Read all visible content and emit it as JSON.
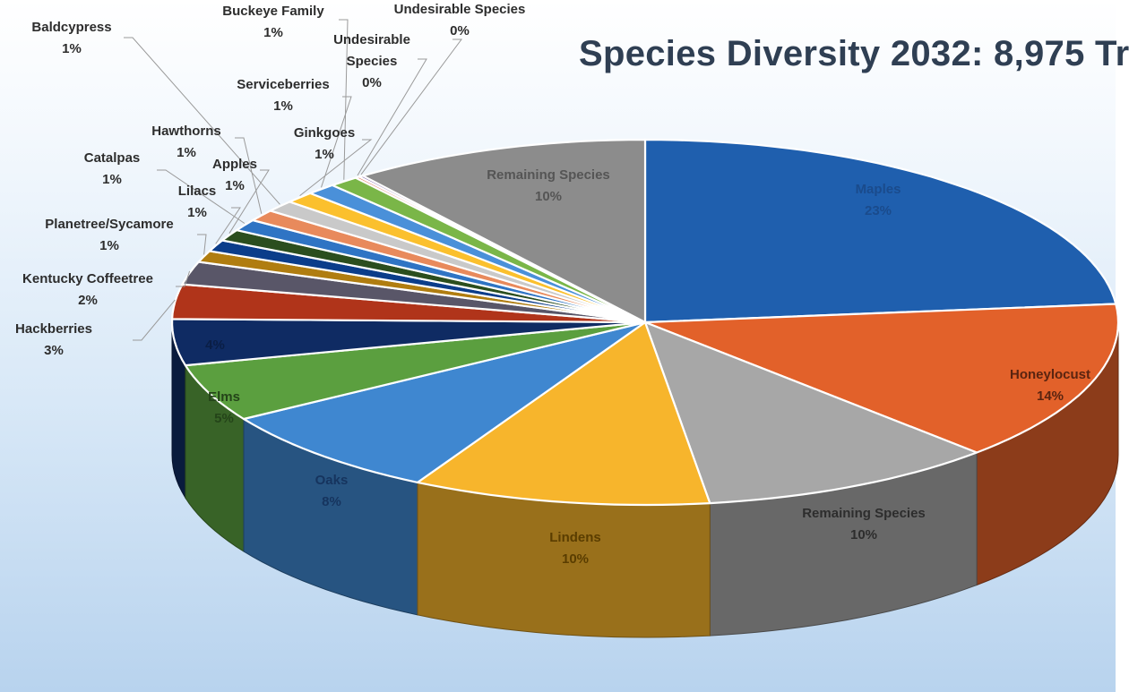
{
  "chart_data": {
    "type": "pie",
    "title": "Species Diversity 2032: 8,975 Tr",
    "series": [
      {
        "label": "Maples",
        "value": 23,
        "pct": "23%",
        "color": "#1f5fae"
      },
      {
        "label": "Honeylocust",
        "value": 14,
        "pct": "14%",
        "color": "#e2612a"
      },
      {
        "label": "Remaining Species",
        "value": 10,
        "pct": "10%",
        "color": "#a7a7a7"
      },
      {
        "label": "Lindens",
        "value": 10,
        "pct": "10%",
        "color": "#f7b52c"
      },
      {
        "label": "Oaks",
        "value": 8,
        "pct": "8%",
        "color": "#3f87d0"
      },
      {
        "label": "Elms",
        "value": 5,
        "pct": "5%",
        "color": "#5b9f3f"
      },
      {
        "label": "",
        "value": 4,
        "pct": "4%",
        "color": "#0f2b63"
      },
      {
        "label": "Hackberries",
        "value": 3,
        "pct": "3%",
        "color": "#b0341a"
      },
      {
        "label": "Kentucky Coffeetree",
        "value": 2,
        "pct": "2%",
        "color": "#595668"
      },
      {
        "label": "Planetree/Sycamore",
        "value": 1,
        "pct": "1%",
        "color": "#b07d10"
      },
      {
        "label": "Lilacs",
        "value": 1,
        "pct": "1%",
        "color": "#0b3d8a"
      },
      {
        "label": "Apples",
        "value": 1,
        "pct": "1%",
        "color": "#2b4e1e"
      },
      {
        "label": "Catalpas",
        "value": 1,
        "pct": "1%",
        "color": "#2f74c4"
      },
      {
        "label": "Hawthorns",
        "value": 1,
        "pct": "1%",
        "color": "#e88a5c"
      },
      {
        "label": "Baldcypress",
        "value": 1,
        "pct": "1%",
        "color": "#c9c9c9"
      },
      {
        "label": "Ginkgoes",
        "value": 1,
        "pct": "1%",
        "color": "#fbc02d"
      },
      {
        "label": "Serviceberries",
        "value": 1,
        "pct": "1%",
        "color": "#4a90d9"
      },
      {
        "label": "Buckeye Family",
        "value": 1,
        "pct": "1%",
        "color": "#7ab648"
      },
      {
        "label": "Undesirable Species",
        "value": 0.15,
        "pct": "0%",
        "color": "#e07a5f"
      },
      {
        "label": "Undesirable Species",
        "value": 0.15,
        "pct": "0%",
        "color": "#7a5ca8"
      },
      {
        "label": "Remaining Species",
        "value": 10,
        "pct": "10%",
        "color": "#8c8c8c"
      }
    ]
  }
}
